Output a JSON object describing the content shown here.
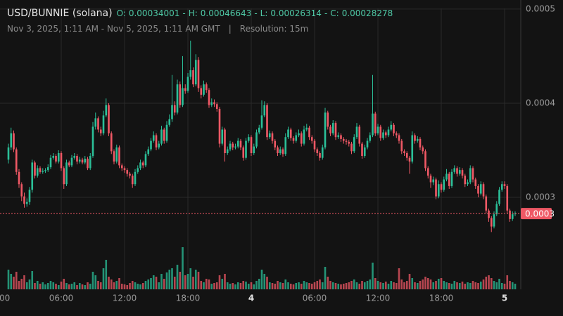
{
  "chart_data": {
    "type": "candlestick",
    "title": "USD/BUNNIE (solana)",
    "summary": [
      {
        "key": "O:",
        "value": 0.00034001
      },
      {
        "key": "H:",
        "value": 0.00046643
      },
      {
        "key": "L:",
        "value": 0.00026314
      },
      {
        "key": "C:",
        "value": 0.00028278
      }
    ],
    "separator": "-",
    "date_range": "Nov 3, 2025, 1:11 AM - Nov 5, 2025, 1:11 AM GMT",
    "divider": "|",
    "resolution": "Resolution: 15m",
    "up_color": "#2bbf98",
    "down_color": "#ef5865",
    "grid": true,
    "xlim": [
      -3.2,
      194.13
    ],
    "xticks": [
      {
        "value": -4,
        "label": "00:00"
      },
      {
        "value": 20,
        "label": "06:00"
      },
      {
        "value": 44,
        "label": "12:00"
      },
      {
        "value": 68,
        "label": "18:00"
      },
      {
        "value": 92,
        "label": "4"
      },
      {
        "value": 116,
        "label": "06:00"
      },
      {
        "value": 140,
        "label": "12:00"
      },
      {
        "value": 164,
        "label": "18:00"
      },
      {
        "value": 188,
        "label": "5"
      }
    ],
    "ylim": [
      0.0002023,
      0.0005096
    ],
    "yticks": [
      0.0003,
      0.0004,
      0.0005
    ],
    "last_price": {
      "value": 0.00028278,
      "label": "0.0003"
    },
    "open": [
      0.00034001,
      0.000353,
      0.000368,
      0.000351,
      0.000327,
      0.000314,
      0.000301,
      0.000293,
      0.000295,
      0.000308,
      0.000337,
      0.000323,
      0.000331,
      0.000327,
      0.000328,
      0.000329,
      0.000332,
      0.000342,
      0.000344,
      0.000338,
      0.000347,
      0.000331,
      0.000314,
      0.000337,
      0.000334,
      0.000342,
      0.000344,
      0.000338,
      0.00034,
      0.000337,
      0.000341,
      0.000331,
      0.000344,
      0.000375,
      0.000384,
      0.000372,
      0.000368,
      0.000387,
      0.000398,
      0.000368,
      0.000349,
      0.000338,
      0.000353,
      0.000334,
      0.000331,
      0.000329,
      0.000325,
      0.000323,
      0.000314,
      0.000327,
      0.000331,
      0.000337,
      0.000334,
      0.000346,
      0.000351,
      0.00036,
      0.000366,
      0.000353,
      0.000357,
      0.000372,
      0.00036,
      0.000377,
      0.000383,
      0.000398,
      0.00039,
      0.00042,
      0.000398,
      0.000416,
      0.000413,
      0.000428,
      0.000435,
      0.00042,
      0.000446,
      0.000416,
      0.000409,
      0.00042,
      0.000414,
      0.000398,
      0.000401,
      0.000399,
      0.000394,
      0.000357,
      0.000372,
      0.000347,
      0.000351,
      0.000357,
      0.000353,
      0.000354,
      0.00036,
      0.000353,
      0.000342,
      0.00036,
      0.000364,
      0.000347,
      0.000354,
      0.000369,
      0.000374,
      0.000387,
      0.000398,
      0.000364,
      0.000368,
      0.00036,
      0.000353,
      0.000347,
      0.000351,
      0.000346,
      0.000364,
      0.000372,
      0.000363,
      0.00036,
      0.000366,
      0.000368,
      0.000357,
      0.000372,
      0.000374,
      0.000364,
      0.00036,
      0.000351,
      0.000347,
      0.000342,
      0.000353,
      0.00039,
      0.000375,
      0.000368,
      0.000379,
      0.000364,
      0.000366,
      0.000362,
      0.00036,
      0.000359,
      0.000357,
      0.000349,
      0.000364,
      0.000375,
      0.000357,
      0.000344,
      0.000353,
      0.00036,
      0.000366,
      0.000389,
      0.000368,
      0.000375,
      0.000363,
      0.000369,
      0.000366,
      0.000372,
      0.000377,
      0.000368,
      0.000366,
      0.00036,
      0.000349,
      0.000347,
      0.000342,
      0.000338,
      0.000366,
      0.00036,
      0.000362,
      0.000353,
      0.000349,
      0.000331,
      0.000323,
      0.000316,
      0.000319,
      0.000301,
      0.000314,
      0.000308,
      0.000319,
      0.000325,
      0.000312,
      0.000327,
      0.000331,
      0.000325,
      0.000329,
      0.000323,
      0.000314,
      0.000316,
      0.000331,
      0.000319,
      0.000312,
      0.000304,
      0.000314,
      0.000301,
      0.000286,
      0.000278,
      0.000269,
      0.000282,
      0.000293,
      0.000308,
      0.000314,
      0.000312,
      0.000286,
      0.000277,
      0.000282
    ],
    "high": [
      0.000357,
      0.000374,
      0.000371,
      0.000353,
      0.00033,
      0.000316,
      0.000305,
      0.000299,
      0.000311,
      0.00034,
      0.000339,
      0.000334,
      0.000333,
      0.000331,
      0.000331,
      0.000335,
      0.000345,
      0.000347,
      0.000346,
      0.00035,
      0.000349,
      0.000333,
      0.00034,
      0.000339,
      0.000345,
      0.000347,
      0.000346,
      0.000343,
      0.000342,
      0.000344,
      0.000343,
      0.000347,
      0.00038,
      0.00039,
      0.000386,
      0.000375,
      0.000392,
      0.000405,
      0.0004,
      0.00037,
      0.000351,
      0.000356,
      0.000355,
      0.000336,
      0.000333,
      0.000331,
      0.000327,
      0.000325,
      0.00033,
      0.000334,
      0.00034,
      0.000339,
      0.000349,
      0.000354,
      0.000363,
      0.00037,
      0.000368,
      0.00036,
      0.000376,
      0.000374,
      0.000381,
      0.000388,
      0.00043,
      0.000402,
      0.000425,
      0.000423,
      0.00045,
      0.00042,
      0.000432,
      0.00046643,
      0.000438,
      0.000452,
      0.000449,
      0.000419,
      0.000424,
      0.000422,
      0.000416,
      0.000405,
      0.000404,
      0.000401,
      0.000396,
      0.000375,
      0.000374,
      0.000354,
      0.00036,
      0.000359,
      0.000357,
      0.000363,
      0.000362,
      0.000355,
      0.000363,
      0.000367,
      0.000366,
      0.000357,
      0.000372,
      0.000377,
      0.000403,
      0.000402,
      0.0004,
      0.000371,
      0.00037,
      0.000362,
      0.000355,
      0.000354,
      0.000353,
      0.000368,
      0.000375,
      0.000374,
      0.000365,
      0.000369,
      0.000372,
      0.00037,
      0.000376,
      0.000378,
      0.000376,
      0.000366,
      0.000362,
      0.000353,
      0.000349,
      0.000356,
      0.000395,
      0.000392,
      0.000377,
      0.000382,
      0.000381,
      0.000369,
      0.000368,
      0.000364,
      0.000362,
      0.000361,
      0.000359,
      0.000367,
      0.000379,
      0.000377,
      0.000359,
      0.000356,
      0.000363,
      0.000369,
      0.00043,
      0.000391,
      0.000378,
      0.000377,
      0.000372,
      0.000371,
      0.000375,
      0.000381,
      0.000379,
      0.00037,
      0.000368,
      0.000362,
      0.000351,
      0.000349,
      0.000344,
      0.00037,
      0.000368,
      0.000365,
      0.000364,
      0.000355,
      0.000351,
      0.000333,
      0.000325,
      0.000322,
      0.000321,
      0.000318,
      0.000316,
      0.000322,
      0.00033,
      0.000327,
      0.00033,
      0.000334,
      0.000333,
      0.000332,
      0.000331,
      0.000325,
      0.000319,
      0.000334,
      0.000333,
      0.000321,
      0.000314,
      0.000317,
      0.000316,
      0.000303,
      0.000288,
      0.00028,
      0.000285,
      0.000296,
      0.000311,
      0.000317,
      0.000317,
      0.000314,
      0.000288,
      0.000285,
      0.000285
    ],
    "low": [
      0.000336,
      0.00035,
      0.000348,
      0.000324,
      0.00031,
      0.000296,
      0.000289,
      0.00029,
      0.000292,
      0.000305,
      0.00032,
      0.000321,
      0.000325,
      0.000325,
      0.000326,
      0.000327,
      0.00033,
      0.00034,
      0.000336,
      0.000336,
      0.000328,
      0.000309,
      0.000312,
      0.000332,
      0.000332,
      0.00034,
      0.000335,
      0.000336,
      0.000335,
      0.000335,
      0.000329,
      0.000329,
      0.000342,
      0.000372,
      0.000369,
      0.000365,
      0.000366,
      0.000385,
      0.000365,
      0.000346,
      0.000335,
      0.000336,
      0.000331,
      0.000328,
      0.000326,
      0.000322,
      0.00032,
      0.00031,
      0.000312,
      0.000325,
      0.000329,
      0.000331,
      0.000332,
      0.000344,
      0.000349,
      0.000358,
      0.00035,
      0.000351,
      0.000355,
      0.000357,
      0.000358,
      0.000375,
      0.00038,
      0.000387,
      0.000388,
      0.000395,
      0.000396,
      0.00041,
      0.000411,
      0.000425,
      0.000417,
      0.000418,
      0.000412,
      0.000405,
      0.000407,
      0.000411,
      0.000395,
      0.000396,
      0.000396,
      0.000391,
      0.000353,
      0.000355,
      0.000338,
      0.000345,
      0.000349,
      0.00035,
      0.000351,
      0.000352,
      0.00035,
      0.000339,
      0.00034,
      0.000358,
      0.000344,
      0.000345,
      0.000352,
      0.000367,
      0.000372,
      0.000385,
      0.000361,
      0.000362,
      0.000357,
      0.00035,
      0.000344,
      0.000345,
      0.000343,
      0.000344,
      0.000362,
      0.00036,
      0.000357,
      0.000358,
      0.000364,
      0.000354,
      0.000355,
      0.00037,
      0.000361,
      0.000357,
      0.000348,
      0.000344,
      0.000339,
      0.00034,
      0.000351,
      0.000372,
      0.000365,
      0.000366,
      0.000361,
      0.000362,
      0.000359,
      0.000357,
      0.000356,
      0.000354,
      0.000346,
      0.000347,
      0.000362,
      0.000354,
      0.000341,
      0.000342,
      0.000351,
      0.000358,
      0.000364,
      0.000365,
      0.000366,
      0.00036,
      0.000361,
      0.000363,
      0.000364,
      0.00037,
      0.000365,
      0.000363,
      0.000357,
      0.000346,
      0.000344,
      0.000339,
      0.000325,
      0.000336,
      0.000357,
      0.000358,
      0.00035,
      0.000346,
      0.000328,
      0.00032,
      0.00031,
      0.000313,
      0.000298,
      0.000299,
      0.000305,
      0.000306,
      0.000317,
      0.000309,
      0.00031,
      0.000325,
      0.000322,
      0.000323,
      0.00032,
      0.000311,
      0.000312,
      0.000314,
      0.000316,
      0.000309,
      0.0003,
      0.000302,
      0.000298,
      0.000283,
      0.000274,
      0.00026314,
      0.000267,
      0.00028,
      0.000291,
      0.000306,
      0.000309,
      0.000283,
      0.000274,
      0.000275,
      0.00028
    ],
    "close": [
      0.000353,
      0.000368,
      0.000351,
      0.000327,
      0.000314,
      0.000301,
      0.000293,
      0.000295,
      0.000308,
      0.000337,
      0.000323,
      0.000331,
      0.000327,
      0.000328,
      0.000329,
      0.000332,
      0.000342,
      0.000344,
      0.000338,
      0.000347,
      0.000331,
      0.000314,
      0.000337,
      0.000334,
      0.000342,
      0.000344,
      0.000338,
      0.00034,
      0.000337,
      0.000341,
      0.000331,
      0.000344,
      0.000375,
      0.000384,
      0.000372,
      0.000368,
      0.000387,
      0.000398,
      0.000368,
      0.000349,
      0.000338,
      0.000353,
      0.000334,
      0.000331,
      0.000329,
      0.000325,
      0.000323,
      0.000314,
      0.000327,
      0.000331,
      0.000337,
      0.000334,
      0.000346,
      0.000351,
      0.00036,
      0.000366,
      0.000353,
      0.000357,
      0.000372,
      0.00036,
      0.000377,
      0.000383,
      0.000398,
      0.00039,
      0.00042,
      0.000398,
      0.000416,
      0.000413,
      0.000428,
      0.000435,
      0.00042,
      0.000446,
      0.000416,
      0.000409,
      0.00042,
      0.000414,
      0.000398,
      0.000401,
      0.000399,
      0.000394,
      0.000357,
      0.000372,
      0.000347,
      0.000351,
      0.000357,
      0.000353,
      0.000354,
      0.00036,
      0.000353,
      0.000342,
      0.00036,
      0.000364,
      0.000347,
      0.000354,
      0.000369,
      0.000374,
      0.000387,
      0.000398,
      0.000364,
      0.000368,
      0.00036,
      0.000353,
      0.000347,
      0.000351,
      0.000346,
      0.000364,
      0.000372,
      0.000363,
      0.00036,
      0.000366,
      0.000368,
      0.000357,
      0.000372,
      0.000374,
      0.000364,
      0.00036,
      0.000351,
      0.000347,
      0.000342,
      0.000353,
      0.00039,
      0.000375,
      0.000368,
      0.000379,
      0.000364,
      0.000366,
      0.000362,
      0.00036,
      0.000359,
      0.000357,
      0.000349,
      0.000364,
      0.000375,
      0.000357,
      0.000344,
      0.000353,
      0.00036,
      0.000366,
      0.000389,
      0.000368,
      0.000375,
      0.000363,
      0.000369,
      0.000366,
      0.000372,
      0.000377,
      0.000368,
      0.000366,
      0.00036,
      0.000349,
      0.000347,
      0.000342,
      0.000338,
      0.000366,
      0.00036,
      0.000362,
      0.000353,
      0.000349,
      0.000331,
      0.000323,
      0.000316,
      0.000319,
      0.000301,
      0.000314,
      0.000308,
      0.000319,
      0.000325,
      0.000312,
      0.000327,
      0.000331,
      0.000325,
      0.000329,
      0.000323,
      0.000314,
      0.000316,
      0.000331,
      0.000319,
      0.000312,
      0.000304,
      0.000314,
      0.000301,
      0.000286,
      0.000278,
      0.000269,
      0.000282,
      0.000293,
      0.000308,
      0.000314,
      0.000312,
      0.000286,
      0.000277,
      0.000282,
      0.00028278
    ],
    "volume": [
      28,
      22,
      18,
      25,
      12,
      15,
      20,
      10,
      14,
      26,
      9,
      12,
      8,
      10,
      7,
      9,
      12,
      10,
      8,
      6,
      11,
      15,
      9,
      7,
      8,
      10,
      6,
      9,
      7,
      6,
      10,
      8,
      25,
      20,
      12,
      10,
      30,
      42,
      18,
      14,
      10,
      12,
      16,
      8,
      7,
      6,
      9,
      12,
      10,
      8,
      7,
      9,
      12,
      14,
      16,
      20,
      18,
      10,
      22,
      15,
      24,
      28,
      30,
      18,
      35,
      25,
      60,
      20,
      22,
      30,
      18,
      28,
      25,
      12,
      10,
      15,
      14,
      8,
      9,
      10,
      20,
      15,
      22,
      10,
      8,
      9,
      7,
      10,
      9,
      12,
      11,
      8,
      10,
      7,
      12,
      15,
      28,
      22,
      18,
      10,
      9,
      8,
      12,
      10,
      9,
      14,
      10,
      8,
      7,
      9,
      10,
      8,
      12,
      10,
      9,
      8,
      10,
      12,
      14,
      10,
      32,
      18,
      12,
      10,
      9,
      8,
      7,
      8,
      9,
      10,
      12,
      14,
      10,
      8,
      12,
      10,
      12,
      14,
      38,
      16,
      12,
      10,
      9,
      11,
      8,
      12,
      10,
      9,
      30,
      14,
      10,
      12,
      22,
      16,
      10,
      9,
      12,
      14,
      18,
      16,
      14,
      10,
      12,
      15,
      16,
      12,
      10,
      9,
      8,
      12,
      10,
      9,
      11,
      8,
      10,
      9,
      12,
      10,
      9,
      11,
      14,
      18,
      20,
      16,
      12,
      10,
      15,
      9,
      8,
      20,
      12,
      10,
      8
    ]
  }
}
